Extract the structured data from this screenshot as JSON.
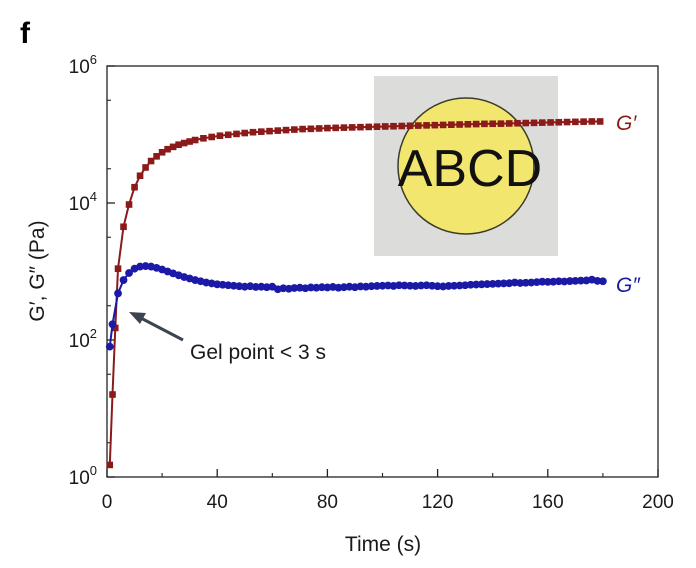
{
  "panel_label": "f",
  "chart_data": {
    "type": "scatter",
    "xlabel": "Time (s)",
    "ylabel": "G′, G″ (Pa)",
    "x_ticks": [
      "0",
      "40",
      "80",
      "120",
      "160",
      "200"
    ],
    "y_ticks": [
      {
        "base": "10",
        "exp": "0"
      },
      {
        "base": "10",
        "exp": "2"
      },
      {
        "base": "10",
        "exp": "4"
      },
      {
        "base": "10",
        "exp": "6"
      }
    ],
    "xlim": [
      0,
      200
    ],
    "ylim": [
      1,
      1000000
    ],
    "yscale": "log",
    "grid": false,
    "series": [
      {
        "name": "G′",
        "color": "#8b1a1a",
        "marker": "square",
        "points": [
          [
            1,
            1.5
          ],
          [
            2,
            16
          ],
          [
            3,
            150
          ],
          [
            4,
            1100
          ],
          [
            6,
            4500
          ],
          [
            8,
            9500
          ],
          [
            10,
            17000
          ],
          [
            12,
            25000
          ],
          [
            14,
            33000
          ],
          [
            16,
            41000
          ],
          [
            18,
            48000
          ],
          [
            20,
            55000
          ],
          [
            22,
            61000
          ],
          [
            24,
            66000
          ],
          [
            26,
            71000
          ],
          [
            28,
            75000
          ],
          [
            30,
            79000
          ],
          [
            32,
            83000
          ],
          [
            35,
            88000
          ],
          [
            38,
            92000
          ],
          [
            41,
            96000
          ],
          [
            44,
            99000
          ],
          [
            47,
            102000
          ],
          [
            50,
            105000
          ],
          [
            53,
            108000
          ],
          [
            56,
            110000
          ],
          [
            59,
            112000
          ],
          [
            62,
            114000
          ],
          [
            65,
            116000
          ],
          [
            68,
            118000
          ],
          [
            71,
            120000
          ],
          [
            74,
            121000
          ],
          [
            77,
            122500
          ],
          [
            80,
            124000
          ],
          [
            83,
            125000
          ],
          [
            86,
            126000
          ],
          [
            89,
            127000
          ],
          [
            92,
            128000
          ],
          [
            95,
            129000
          ],
          [
            98,
            130000
          ],
          [
            101,
            131000
          ],
          [
            104,
            132000
          ],
          [
            107,
            133000
          ],
          [
            110,
            134000
          ],
          [
            113,
            135000
          ],
          [
            116,
            136000
          ],
          [
            119,
            137000
          ],
          [
            122,
            138000
          ],
          [
            125,
            139000
          ],
          [
            128,
            140000
          ],
          [
            131,
            141000
          ],
          [
            134,
            142000
          ],
          [
            137,
            143000
          ],
          [
            140,
            143500
          ],
          [
            143,
            144000
          ],
          [
            146,
            145000
          ],
          [
            149,
            146000
          ],
          [
            152,
            147000
          ],
          [
            155,
            148000
          ],
          [
            158,
            149000
          ],
          [
            161,
            150000
          ],
          [
            164,
            151000
          ],
          [
            167,
            152000
          ],
          [
            170,
            153000
          ],
          [
            173,
            154000
          ],
          [
            176,
            155000
          ],
          [
            179,
            155000
          ]
        ]
      },
      {
        "name": "G″",
        "color": "#1a1aa6",
        "marker": "circle",
        "points": [
          [
            1,
            80
          ],
          [
            2,
            170
          ],
          [
            4,
            480
          ],
          [
            6,
            750
          ],
          [
            8,
            950
          ],
          [
            10,
            1100
          ],
          [
            12,
            1180
          ],
          [
            14,
            1200
          ],
          [
            16,
            1180
          ],
          [
            18,
            1130
          ],
          [
            20,
            1070
          ],
          [
            22,
            1000
          ],
          [
            24,
            940
          ],
          [
            26,
            880
          ],
          [
            28,
            830
          ],
          [
            30,
            790
          ],
          [
            32,
            750
          ],
          [
            34,
            720
          ],
          [
            36,
            690
          ],
          [
            38,
            670
          ],
          [
            40,
            650
          ],
          [
            42,
            640
          ],
          [
            44,
            630
          ],
          [
            46,
            620
          ],
          [
            48,
            610
          ],
          [
            50,
            600
          ],
          [
            52,
            610
          ],
          [
            54,
            595
          ],
          [
            56,
            600
          ],
          [
            58,
            590
          ],
          [
            60,
            600
          ],
          [
            62,
            550
          ],
          [
            64,
            570
          ],
          [
            66,
            560
          ],
          [
            68,
            575
          ],
          [
            70,
            580
          ],
          [
            72,
            570
          ],
          [
            74,
            585
          ],
          [
            76,
            580
          ],
          [
            78,
            590
          ],
          [
            80,
            585
          ],
          [
            82,
            595
          ],
          [
            84,
            580
          ],
          [
            86,
            590
          ],
          [
            88,
            600
          ],
          [
            90,
            590
          ],
          [
            92,
            605
          ],
          [
            94,
            600
          ],
          [
            96,
            610
          ],
          [
            98,
            615
          ],
          [
            100,
            620
          ],
          [
            102,
            625
          ],
          [
            104,
            615
          ],
          [
            106,
            630
          ],
          [
            108,
            625
          ],
          [
            110,
            620
          ],
          [
            112,
            615
          ],
          [
            114,
            625
          ],
          [
            116,
            630
          ],
          [
            118,
            620
          ],
          [
            120,
            610
          ],
          [
            122,
            605
          ],
          [
            124,
            615
          ],
          [
            126,
            620
          ],
          [
            128,
            625
          ],
          [
            130,
            630
          ],
          [
            132,
            640
          ],
          [
            134,
            645
          ],
          [
            136,
            650
          ],
          [
            138,
            655
          ],
          [
            140,
            660
          ],
          [
            142,
            665
          ],
          [
            144,
            670
          ],
          [
            146,
            675
          ],
          [
            148,
            690
          ],
          [
            150,
            680
          ],
          [
            152,
            685
          ],
          [
            154,
            690
          ],
          [
            156,
            700
          ],
          [
            158,
            710
          ],
          [
            160,
            705
          ],
          [
            162,
            710
          ],
          [
            164,
            720
          ],
          [
            166,
            715
          ],
          [
            168,
            725
          ],
          [
            170,
            730
          ],
          [
            172,
            735
          ],
          [
            174,
            740
          ],
          [
            176,
            760
          ],
          [
            178,
            730
          ],
          [
            180,
            720
          ]
        ]
      }
    ],
    "annotations": [
      {
        "text": "Gel point < 3 s",
        "points_to": [
          8,
          200
        ]
      }
    ]
  },
  "inset_photo": {
    "text": "ABCD",
    "disc_color": "#f2e66f",
    "background_color": "#dcdcda"
  }
}
